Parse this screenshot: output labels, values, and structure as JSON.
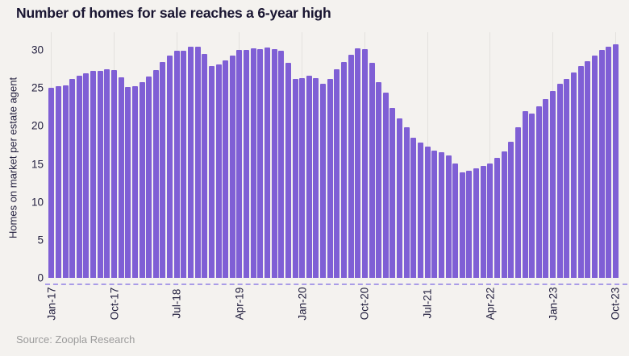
{
  "header": {
    "title": "Number of homes for sale reaches a 6-year high"
  },
  "footer": {
    "source": "Source: Zoopla Research"
  },
  "chart_data": {
    "type": "bar",
    "title": "Number of homes for sale reaches a 6-year high",
    "xlabel": "",
    "ylabel": "Homes on market per estate agent",
    "ylim": [
      0,
      32
    ],
    "yticks": [
      0,
      5,
      10,
      15,
      20,
      25,
      30
    ],
    "grid": "vertical-only",
    "legend_position": "none",
    "x_tick_labels": [
      "Jan-17",
      "Oct-17",
      "Jul-18",
      "Apr-19",
      "Jan-20",
      "Oct-20",
      "Jul-21",
      "Apr-22",
      "Jan-23",
      "Oct-23"
    ],
    "x_tick_indices": [
      0,
      9,
      18,
      27,
      36,
      45,
      54,
      63,
      72,
      81
    ],
    "categories": [
      "Jan-17",
      "Feb-17",
      "Mar-17",
      "Apr-17",
      "May-17",
      "Jun-17",
      "Jul-17",
      "Aug-17",
      "Sep-17",
      "Oct-17",
      "Nov-17",
      "Dec-17",
      "Jan-18",
      "Feb-18",
      "Mar-18",
      "Apr-18",
      "May-18",
      "Jun-18",
      "Jul-18",
      "Aug-18",
      "Sep-18",
      "Oct-18",
      "Nov-18",
      "Dec-18",
      "Jan-19",
      "Feb-19",
      "Mar-19",
      "Apr-19",
      "May-19",
      "Jun-19",
      "Jul-19",
      "Aug-19",
      "Sep-19",
      "Oct-19",
      "Nov-19",
      "Dec-19",
      "Jan-20",
      "Feb-20",
      "Mar-20",
      "Apr-20",
      "May-20",
      "Jun-20",
      "Jul-20",
      "Aug-20",
      "Sep-20",
      "Oct-20",
      "Nov-20",
      "Dec-20",
      "Jan-21",
      "Feb-21",
      "Mar-21",
      "Apr-21",
      "May-21",
      "Jun-21",
      "Jul-21",
      "Aug-21",
      "Sep-21",
      "Oct-21",
      "Nov-21",
      "Dec-21",
      "Jan-22",
      "Feb-22",
      "Mar-22",
      "Apr-22",
      "May-22",
      "Jun-22",
      "Jul-22",
      "Aug-22",
      "Sep-22",
      "Oct-22",
      "Nov-22",
      "Dec-22",
      "Jan-23",
      "Feb-23",
      "Mar-23",
      "Apr-23",
      "May-23",
      "Jun-23",
      "Jul-23",
      "Aug-23",
      "Sep-23",
      "Oct-23"
    ],
    "values": [
      25.0,
      25.2,
      25.3,
      26.2,
      26.6,
      26.9,
      27.2,
      27.2,
      27.5,
      27.4,
      26.4,
      25.1,
      25.2,
      25.8,
      26.5,
      27.4,
      28.4,
      29.3,
      29.9,
      29.9,
      30.4,
      30.4,
      29.5,
      27.9,
      28.1,
      28.6,
      29.3,
      30.0,
      30.0,
      30.2,
      30.1,
      30.3,
      30.1,
      29.9,
      28.3,
      26.2,
      26.3,
      26.6,
      26.3,
      25.6,
      26.2,
      27.5,
      28.4,
      29.4,
      30.2,
      30.1,
      28.3,
      25.8,
      24.4,
      22.4,
      21.0,
      19.8,
      18.5,
      17.8,
      17.3,
      16.8,
      16.5,
      16.1,
      15.1,
      13.9,
      14.1,
      14.4,
      14.7,
      15.1,
      15.8,
      16.7,
      17.9,
      19.8,
      22.0,
      21.6,
      22.6,
      23.5,
      24.6,
      25.5,
      26.2,
      27.0,
      27.9,
      28.5,
      29.3,
      30.0,
      30.4,
      30.8
    ],
    "colors": {
      "bar": "#7f5fd5",
      "background": "#f4f2ef",
      "text": "#191531",
      "axis_text": "#23203f",
      "gridline": "#e3e1de",
      "dashed_baseline": "#9c8ee6",
      "source_text": "#9b9b9b"
    }
  }
}
